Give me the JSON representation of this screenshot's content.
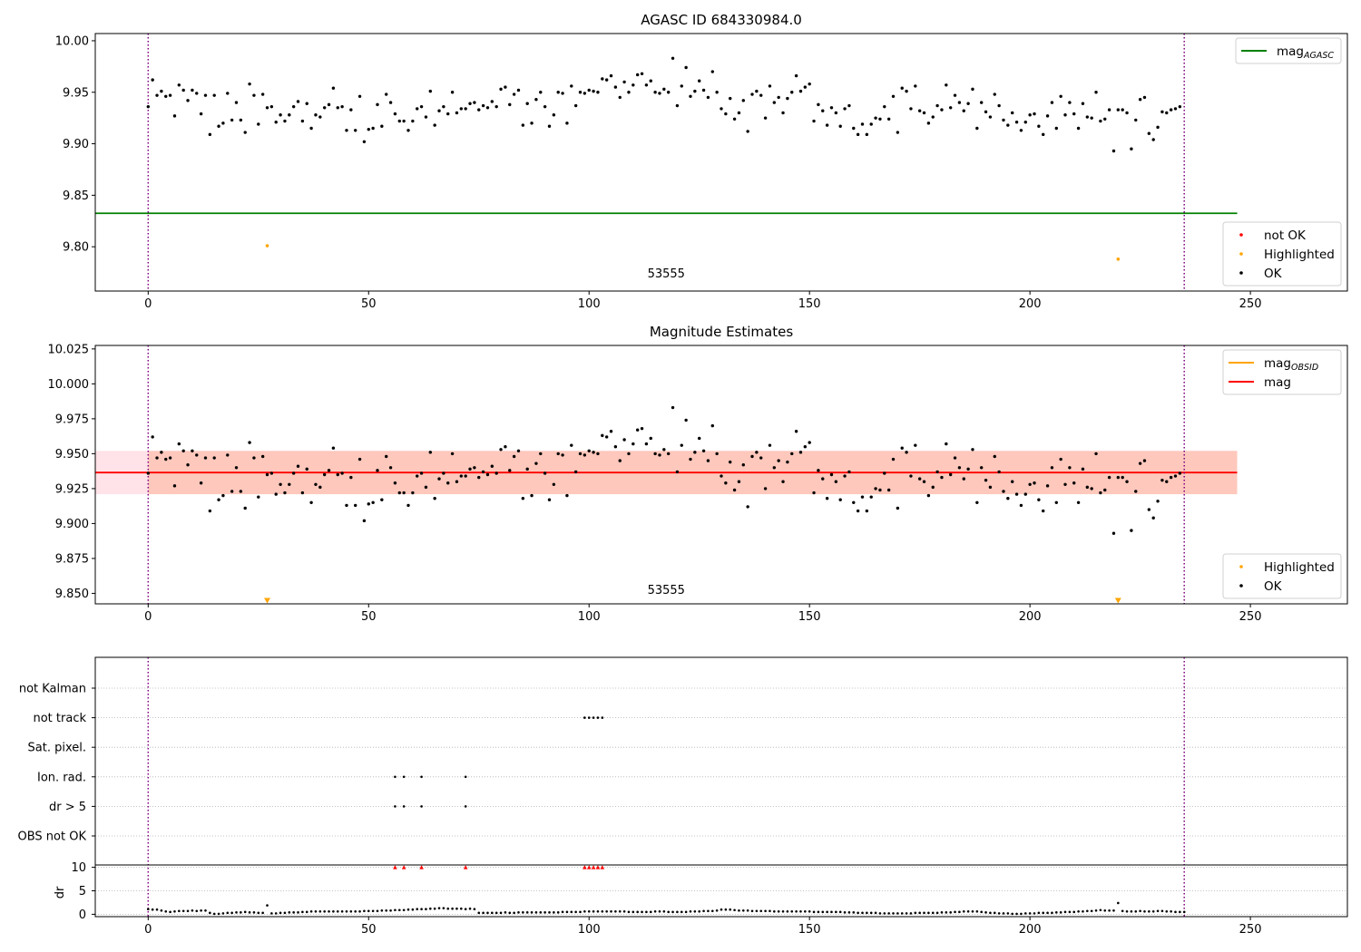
{
  "colors": {
    "ok": "#000000",
    "highlighted": "#ffa500",
    "not_ok": "#ff0000",
    "agasc_line": "#008000",
    "obsid_mag": "#ffa500",
    "mag_line": "#ff0000",
    "band_outer": "#ffc0cb",
    "band_inner": "#ffa07a",
    "obs_boundary": "#800080",
    "grid": "#b0b0b0"
  },
  "chart_data": [
    {
      "type": "scatter",
      "title": "AGASC ID 684330984.0",
      "xlim": [
        -12,
        272
      ],
      "ylim": [
        9.757,
        10.007
      ],
      "xticks": [
        0,
        50,
        100,
        150,
        200,
        250
      ],
      "yticks": [
        9.8,
        9.85,
        9.9,
        9.95,
        10.0
      ],
      "ytick_labels": [
        "9.80",
        "9.85",
        "9.90",
        "9.95",
        "10.00"
      ],
      "obs_boundaries": [
        0,
        235
      ],
      "obs_label": {
        "text": "53555",
        "x": 117.5,
        "y": 9.77
      },
      "agasc_mag": {
        "value": 9.8325,
        "x_range": [
          -12,
          247
        ]
      },
      "highlighted_points": [
        {
          "x": 27,
          "y": 9.801
        },
        {
          "x": 220,
          "y": 9.788
        }
      ],
      "legend_top": [
        {
          "label": "mag",
          "subscript": "AGASC",
          "kind": "line",
          "color_key": "agasc_line"
        }
      ],
      "legend_bottom": [
        {
          "label": "not OK",
          "kind": "point",
          "color_key": "not_ok"
        },
        {
          "label": "Highlighted",
          "kind": "point",
          "color_key": "highlighted"
        },
        {
          "label": "OK",
          "kind": "point",
          "color_key": "ok"
        }
      ]
    },
    {
      "type": "scatter",
      "title": "Magnitude Estimates",
      "xlim": [
        -12,
        272
      ],
      "ylim": [
        9.8425,
        10.0275
      ],
      "xticks": [
        0,
        50,
        100,
        150,
        200,
        250
      ],
      "yticks": [
        9.85,
        9.875,
        9.9,
        9.925,
        9.95,
        9.975,
        10.0,
        10.025
      ],
      "ytick_labels": [
        "9.850",
        "9.875",
        "9.900",
        "9.925",
        "9.950",
        "9.975",
        "10.000",
        "10.025"
      ],
      "obs_boundaries": [
        0,
        235
      ],
      "obs_label": {
        "text": "53555",
        "x": 117.5,
        "y": 9.8495
      },
      "mag_mean": 9.9365,
      "band": {
        "low": 9.921,
        "high": 9.952,
        "x_range": [
          -12,
          247
        ]
      },
      "highlighted_markers": [
        {
          "x": 27,
          "y": 9.845
        },
        {
          "x": 220,
          "y": 9.845
        }
      ],
      "legend_top": [
        {
          "label": "mag",
          "subscript": "OBSID",
          "kind": "line",
          "color_key": "obsid_mag"
        },
        {
          "label": "mag",
          "subscript": "",
          "kind": "line",
          "color_key": "mag_line"
        }
      ],
      "legend_bottom": [
        {
          "label": "Highlighted",
          "kind": "point",
          "color_key": "highlighted"
        },
        {
          "label": "OK",
          "kind": "point",
          "color_key": "ok"
        }
      ]
    },
    {
      "type": "scatter",
      "xlim": [
        -12,
        272
      ],
      "xticks": [
        0,
        50,
        100,
        150,
        200,
        250
      ],
      "flag_categories": [
        "not Kalman",
        "not track",
        "Sat. pixel.",
        "Ion. rad.",
        "dr > 5",
        "OBS not OK"
      ],
      "flag_points": {
        "not Kalman": [],
        "not track": [
          99,
          100,
          101,
          102,
          103
        ],
        "Sat. pixel.": [],
        "Ion. rad.": [
          56,
          58,
          62,
          72
        ],
        "dr > 5": [
          56,
          58,
          62,
          72
        ],
        "OBS not OK": []
      },
      "obs_boundaries": [
        0,
        235
      ],
      "dr_ylabel": "dr",
      "dr_ylim": [
        -0.5,
        10.5
      ],
      "dr_yticks": [
        0,
        5,
        10
      ],
      "dr_clipped_x": [
        56,
        58,
        62,
        72,
        99,
        100,
        101,
        102,
        103
      ],
      "dr_clipped_value": 10
    }
  ],
  "mag_series": [
    9.936,
    9.962,
    9.947,
    9.951,
    9.946,
    9.947,
    9.927,
    9.957,
    9.952,
    9.942,
    9.952,
    9.949,
    9.929,
    9.947,
    9.909,
    9.947,
    9.917,
    9.92,
    9.949,
    9.923,
    9.94,
    9.923,
    9.911,
    9.958,
    9.947,
    9.919,
    9.948,
    9.935,
    9.936,
    9.921,
    9.928,
    9.922,
    9.928,
    9.936,
    9.941,
    9.922,
    9.939,
    9.915,
    9.928,
    9.926,
    9.935,
    9.938,
    9.954,
    9.935,
    9.936,
    9.913,
    9.933,
    9.913,
    9.946,
    9.902,
    9.914,
    9.915,
    9.938,
    9.917,
    9.948,
    9.94,
    9.929,
    9.922,
    9.922,
    9.913,
    9.922,
    9.934,
    9.936,
    9.926,
    9.951,
    9.918,
    9.932,
    9.936,
    9.929,
    9.95,
    9.93,
    9.934,
    9.934,
    9.939,
    9.94,
    9.933,
    9.937,
    9.935,
    9.941,
    9.936,
    9.953,
    9.955,
    9.938,
    9.948,
    9.952,
    9.918,
    9.939,
    9.92,
    9.943,
    9.95,
    9.936,
    9.917,
    9.928,
    9.95,
    9.949,
    9.92,
    9.956,
    9.937,
    9.95,
    9.949,
    9.952,
    9.951,
    9.95,
    9.963,
    9.962,
    9.966,
    9.955,
    9.945,
    9.96,
    9.95,
    9.957,
    9.967,
    9.968,
    9.957,
    9.961,
    9.95,
    9.949,
    9.953,
    9.95,
    9.983,
    9.937,
    9.956,
    9.974,
    9.946,
    9.951,
    9.961,
    9.952,
    9.945,
    9.97,
    9.95,
    9.934,
    9.929,
    9.944,
    9.924,
    9.93,
    9.942,
    9.912,
    9.948,
    9.951,
    9.947,
    9.925,
    9.956,
    9.94,
    9.945,
    9.93,
    9.944,
    9.95,
    9.966,
    9.951,
    9.955,
    9.958,
    9.922,
    9.938,
    9.932,
    9.918,
    9.935,
    9.93,
    9.917,
    9.934,
    9.937,
    9.915,
    9.909,
    9.919,
    9.909,
    9.919,
    9.925,
    9.924,
    9.936,
    9.924,
    9.946,
    9.911,
    9.954,
    9.951,
    9.934,
    9.956,
    9.932,
    9.93,
    9.92,
    9.926,
    9.937,
    9.933,
    9.957,
    9.935,
    9.947,
    9.94,
    9.932,
    9.939,
    9.953,
    9.915,
    9.94,
    9.931,
    9.926,
    9.948,
    9.937,
    9.923,
    9.918,
    9.93,
    9.921,
    9.913,
    9.921,
    9.928,
    9.929,
    9.917,
    9.909,
    9.927,
    9.94,
    9.915,
    9.946,
    9.928,
    9.94,
    9.929,
    9.915,
    9.939,
    9.926,
    9.925,
    9.95,
    9.922,
    9.924,
    9.933,
    9.893,
    9.933,
    9.933,
    9.93,
    9.895,
    9.923,
    9.943,
    9.945,
    9.91,
    9.904,
    9.916,
    9.931,
    9.93,
    9.933,
    9.934,
    9.936
  ],
  "dr_series": [
    1.1,
    1.0,
    1.0,
    0.8,
    0.6,
    0.5,
    0.6,
    0.7,
    0.7,
    0.7,
    0.8,
    0.7,
    0.8,
    0.8,
    0.3,
    0.1,
    0.1,
    0.2,
    0.3,
    0.3,
    0.4,
    0.4,
    0.5,
    0.4,
    0.4,
    0.3,
    0.3,
    1.9,
    0.2,
    0.2,
    0.3,
    0.3,
    0.4,
    0.4,
    0.4,
    0.5,
    0.5,
    0.6,
    0.6,
    0.6,
    0.6,
    0.6,
    0.6,
    0.6,
    0.6,
    0.6,
    0.6,
    0.6,
    0.6,
    0.7,
    0.7,
    0.7,
    0.7,
    0.8,
    0.8,
    0.8,
    0.9,
    0.9,
    0.9,
    1.0,
    1.0,
    1.1,
    1.1,
    1.1,
    1.2,
    1.2,
    1.3,
    1.3,
    1.2,
    1.2,
    1.2,
    1.2,
    1.1,
    1.2,
    1.1,
    0.3,
    0.3,
    0.3,
    0.3,
    0.3,
    0.3,
    0.4,
    0.3,
    0.3,
    0.4,
    0.4,
    0.4,
    0.4,
    0.4,
    0.4,
    0.4,
    0.4,
    0.4,
    0.4,
    0.5,
    0.5,
    0.5,
    0.5,
    0.5,
    0.6,
    0.6,
    0.6,
    0.6,
    0.6,
    0.6,
    0.6,
    0.6,
    0.6,
    0.6,
    0.5,
    0.5,
    0.5,
    0.5,
    0.5,
    0.5,
    0.6,
    0.6,
    0.6,
    0.5,
    0.5,
    0.5,
    0.5,
    0.5,
    0.6,
    0.6,
    0.6,
    0.7,
    0.7,
    0.7,
    0.8,
    1.0,
    1.0,
    1.0,
    0.9,
    0.8,
    0.8,
    0.8,
    0.7,
    0.7,
    0.7,
    0.7,
    0.7,
    0.6,
    0.6,
    0.6,
    0.6,
    0.6,
    0.6,
    0.6,
    0.6,
    0.6,
    0.5,
    0.5,
    0.5,
    0.5,
    0.5,
    0.5,
    0.5,
    0.4,
    0.4,
    0.4,
    0.3,
    0.3,
    0.3,
    0.3,
    0.3,
    0.2,
    0.2,
    0.2,
    0.2,
    0.2,
    0.2,
    0.2,
    0.2,
    0.3,
    0.3,
    0.3,
    0.3,
    0.3,
    0.3,
    0.4,
    0.4,
    0.4,
    0.5,
    0.5,
    0.6,
    0.6,
    0.6,
    0.6,
    0.5,
    0.4,
    0.3,
    0.3,
    0.2,
    0.2,
    0.2,
    0.1,
    0.1,
    0.1,
    0.2,
    0.2,
    0.2,
    0.3,
    0.3,
    0.3,
    0.3,
    0.4,
    0.4,
    0.5,
    0.5,
    0.5,
    0.6,
    0.6,
    0.7,
    0.7,
    0.8,
    0.9,
    0.8,
    0.8,
    0.8,
    2.4,
    0.7,
    0.6,
    0.6,
    0.6,
    0.7,
    0.6,
    0.6,
    0.6,
    0.7,
    0.7,
    0.6,
    0.6,
    0.5,
    0.5,
    0.5
  ]
}
